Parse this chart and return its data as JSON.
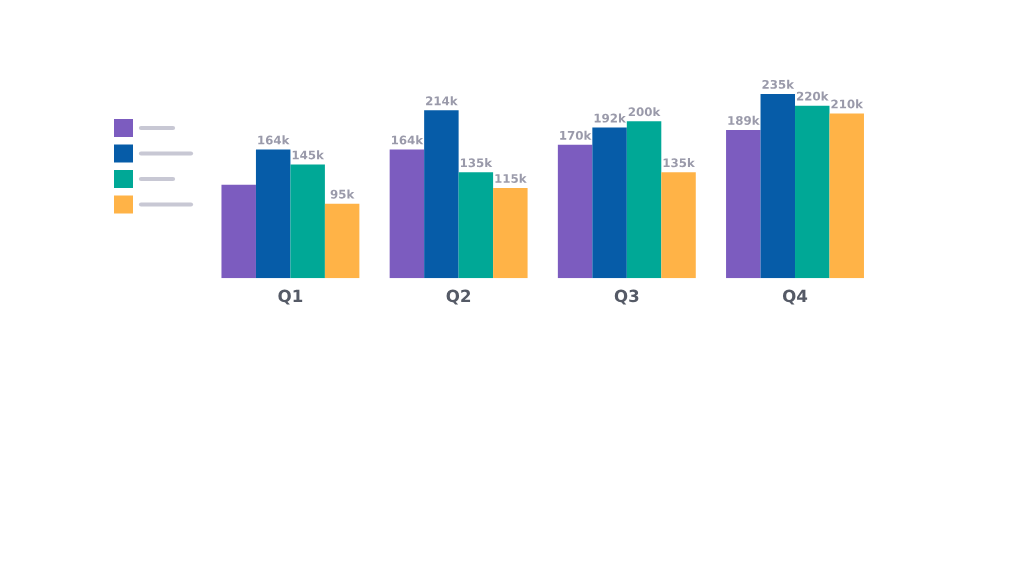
{
  "chart_data": {
    "type": "bar",
    "categories": [
      "Q1",
      "Q2",
      "Q3",
      "Q4"
    ],
    "series": [
      {
        "color": "#7c5cbf",
        "values": [
          119,
          164,
          170,
          189
        ],
        "value_labels": [
          null,
          "164k",
          "170k",
          "189k"
        ]
      },
      {
        "color": "#065ca8",
        "values": [
          164,
          214,
          192,
          235
        ],
        "value_labels": [
          "164k",
          "214k",
          "192k",
          "235k"
        ]
      },
      {
        "color": "#00a896",
        "values": [
          145,
          135,
          200,
          220
        ],
        "value_labels": [
          "145k",
          "135k",
          "200k",
          "220k"
        ]
      },
      {
        "color": "#ffb347",
        "values": [
          95,
          115,
          135,
          210
        ],
        "value_labels": [
          "95k",
          "115k",
          "135k",
          "210k"
        ]
      }
    ],
    "grid": false,
    "tick_labels": "x"
  }
}
